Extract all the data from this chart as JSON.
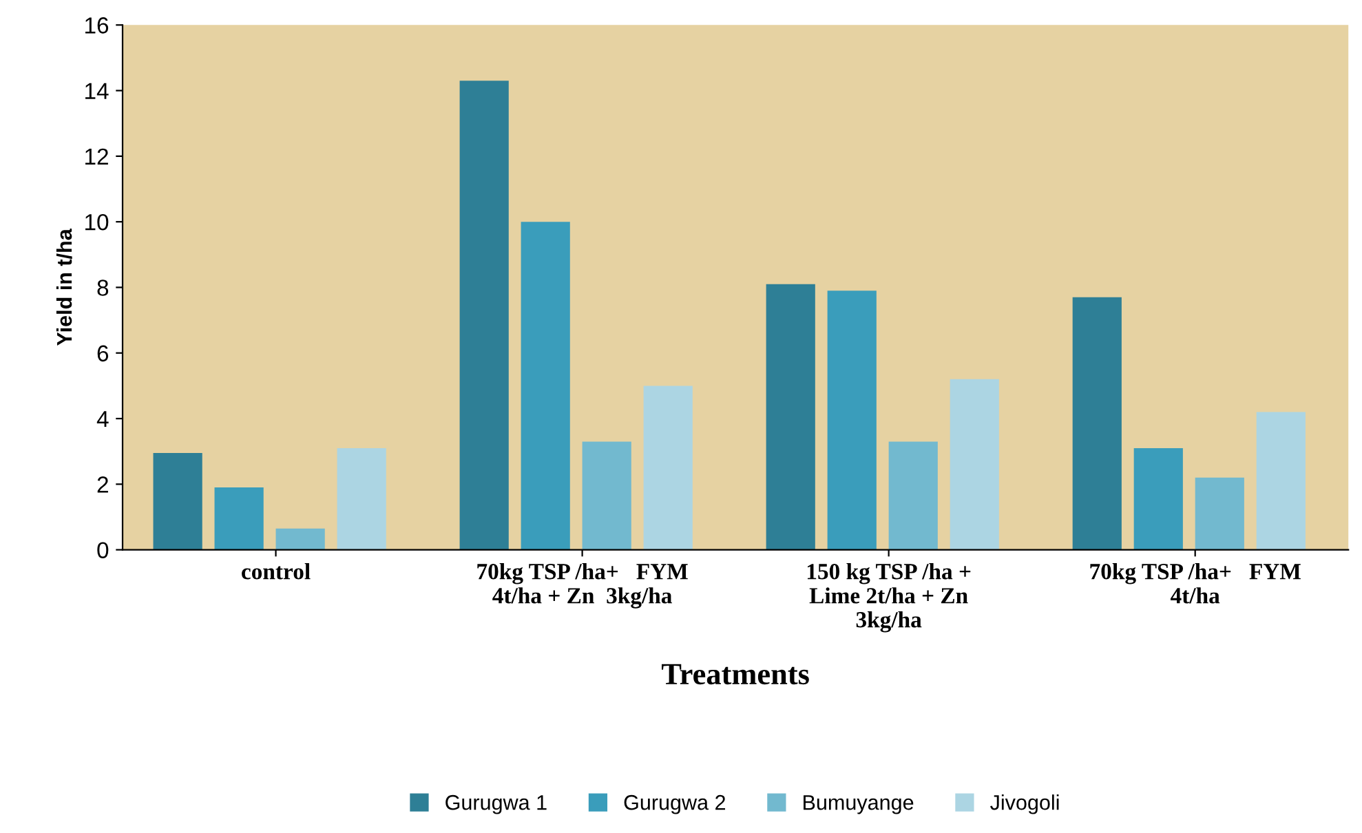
{
  "chart_data": {
    "type": "bar",
    "xlabel": "Treatments",
    "ylabel": "Yield in t/ha",
    "categories": [
      "control",
      "70kg TSP /ha+   FYM\n4t/ha + Zn  3kg/ha",
      "150 kg TSP /ha +\nLime 2t/ha + Zn\n3kg/ha",
      "70kg TSP /ha+   FYM\n4t/ha"
    ],
    "series": [
      {
        "name": "Gurugwa 1",
        "color": "#2e7f96",
        "values": [
          2.95,
          14.3,
          8.1,
          7.7
        ]
      },
      {
        "name": "Gurugwa 2",
        "color": "#3a9dbb",
        "values": [
          1.9,
          10.0,
          7.9,
          3.1
        ]
      },
      {
        "name": "Bumuyange",
        "color": "#72b9cf",
        "values": [
          0.65,
          3.3,
          3.3,
          2.2
        ]
      },
      {
        "name": "Jivogoli",
        "color": "#acd5e3",
        "values": [
          3.1,
          5.0,
          5.2,
          4.2
        ]
      }
    ],
    "ylim": [
      0,
      16
    ],
    "yticks": [
      0,
      2,
      4,
      6,
      8,
      10,
      12,
      14,
      16
    ],
    "grid": false,
    "legend": "bottom"
  }
}
